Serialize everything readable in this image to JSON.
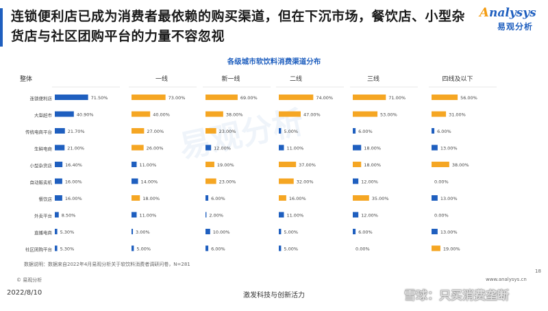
{
  "title": "连锁便利店已成为消费者最依赖的购买渠道，但在下沉市场，餐饮店、小型杂货店与社区团购平台的力量不容忽视",
  "logo": {
    "mark": "nalysys",
    "mark_initial": "A",
    "sub": "易观分析"
  },
  "watermark": "易观分析",
  "note": "数据说明：数据来自2022年4月易观分析关于软饮料消费者调研问卷，N=281",
  "source": "© 易观分析",
  "site": "www.analysys.cn",
  "page_number": "18",
  "date": "2022/8/10",
  "slogan": "激发科技与创新活力",
  "snowball": "雪球：只买消费垄断",
  "colors": {
    "primary": "#1f5fbf",
    "secondary": "#f5a623"
  },
  "chart_data": {
    "type": "bar",
    "orientation": "horizontal",
    "title": "各级城市软饮料消费渠道分布",
    "categories": [
      "连锁便利店",
      "大型超市",
      "传统电商平台",
      "生鲜电商",
      "小型杂货店",
      "自动贩卖机",
      "餐饮店",
      "外卖平台",
      "直播电商",
      "社区团购平台"
    ],
    "series": [
      {
        "name": "整体",
        "color": "#1f5fbf",
        "labels": [
          "71.50%",
          "40.90%",
          "21.70%",
          "21.00%",
          "16.40%",
          "16.00%",
          "16.00%",
          "8.50%",
          "5.30%",
          "5.30%"
        ],
        "values": [
          71.5,
          40.9,
          21.7,
          21.0,
          16.4,
          16.0,
          16.0,
          8.5,
          5.3,
          5.3
        ]
      },
      {
        "name": "一线",
        "color": "#f5a623",
        "labels": [
          "73.00%",
          "40.00%",
          "27.00%",
          "26.00%",
          "11.00%",
          "14.00%",
          "18.00%",
          "11.00%",
          "3.00%",
          "5.00%"
        ],
        "values": [
          73,
          40,
          27,
          26,
          11,
          14,
          18,
          11,
          3,
          5
        ]
      },
      {
        "name": "新一线",
        "color": "#f5a623",
        "labels": [
          "69.00%",
          "38.00%",
          "23.00%",
          "12.00%",
          "19.00%",
          "23.00%",
          "6.00%",
          "2.00%",
          "10.00%",
          "6.00%"
        ],
        "values": [
          69,
          38,
          23,
          12,
          19,
          23,
          6,
          2,
          10,
          6
        ]
      },
      {
        "name": "二线",
        "color": "#f5a623",
        "labels": [
          "74.00%",
          "47.00%",
          "5.00%",
          "11.00%",
          "37.00%",
          "32.00%",
          "16.00%",
          "11.00%",
          "5.00%",
          "5.00%"
        ],
        "values": [
          74,
          47,
          5,
          11,
          37,
          32,
          16,
          11,
          5,
          5
        ]
      },
      {
        "name": "三线",
        "color": "#f5a623",
        "labels": [
          "71.00%",
          "53.00%",
          "6.00%",
          "18.00%",
          "18.00%",
          "12.00%",
          "35.00%",
          "12.00%",
          "6.00%",
          "0.00%"
        ],
        "values": [
          71,
          53,
          6,
          18,
          18,
          12,
          35,
          12,
          6,
          0
        ]
      },
      {
        "name": "四线及以下",
        "color": "#f5a623",
        "labels": [
          "56.00%",
          "31.00%",
          "6.00%",
          "13.00%",
          "38.00%",
          "0.00%",
          "13.00%",
          "0.00%",
          "13.00%",
          "19.00%"
        ],
        "values": [
          56,
          31,
          6,
          13,
          38,
          0,
          13,
          0,
          13,
          19
        ]
      }
    ],
    "series_colors_by_category": {
      "新一线": [
        "#f5a623",
        "#f5a623",
        "#f5a623",
        "#1f5fbf",
        "#f5a623",
        "#f5a623",
        "#1f5fbf",
        "#1f5fbf",
        "#1f5fbf",
        "#1f5fbf"
      ],
      "二线": [
        "#f5a623",
        "#f5a623",
        "#1f5fbf",
        "#1f5fbf",
        "#f5a623",
        "#f5a623",
        "#f5a623",
        "#1f5fbf",
        "#1f5fbf",
        "#1f5fbf"
      ],
      "三线": [
        "#f5a623",
        "#f5a623",
        "#1f5fbf",
        "#1f5fbf",
        "#f5a623",
        "#1f5fbf",
        "#f5a623",
        "#1f5fbf",
        "#1f5fbf",
        "#1f5fbf"
      ],
      "四线及以下": [
        "#f5a623",
        "#f5a623",
        "#1f5fbf",
        "#1f5fbf",
        "#f5a623",
        "#1f5fbf",
        "#1f5fbf",
        "#1f5fbf",
        "#1f5fbf",
        "#f5a623"
      ],
      "一线": [
        "#f5a623",
        "#f5a623",
        "#f5a623",
        "#f5a623",
        "#1f5fbf",
        "#1f5fbf",
        "#f5a623",
        "#1f5fbf",
        "#1f5fbf",
        "#1f5fbf"
      ],
      "整体": [
        "#1f5fbf",
        "#1f5fbf",
        "#1f5fbf",
        "#1f5fbf",
        "#1f5fbf",
        "#1f5fbf",
        "#1f5fbf",
        "#1f5fbf",
        "#1f5fbf",
        "#1f5fbf"
      ]
    },
    "xlim": [
      0,
      100
    ],
    "grid": false,
    "legend": "none"
  }
}
